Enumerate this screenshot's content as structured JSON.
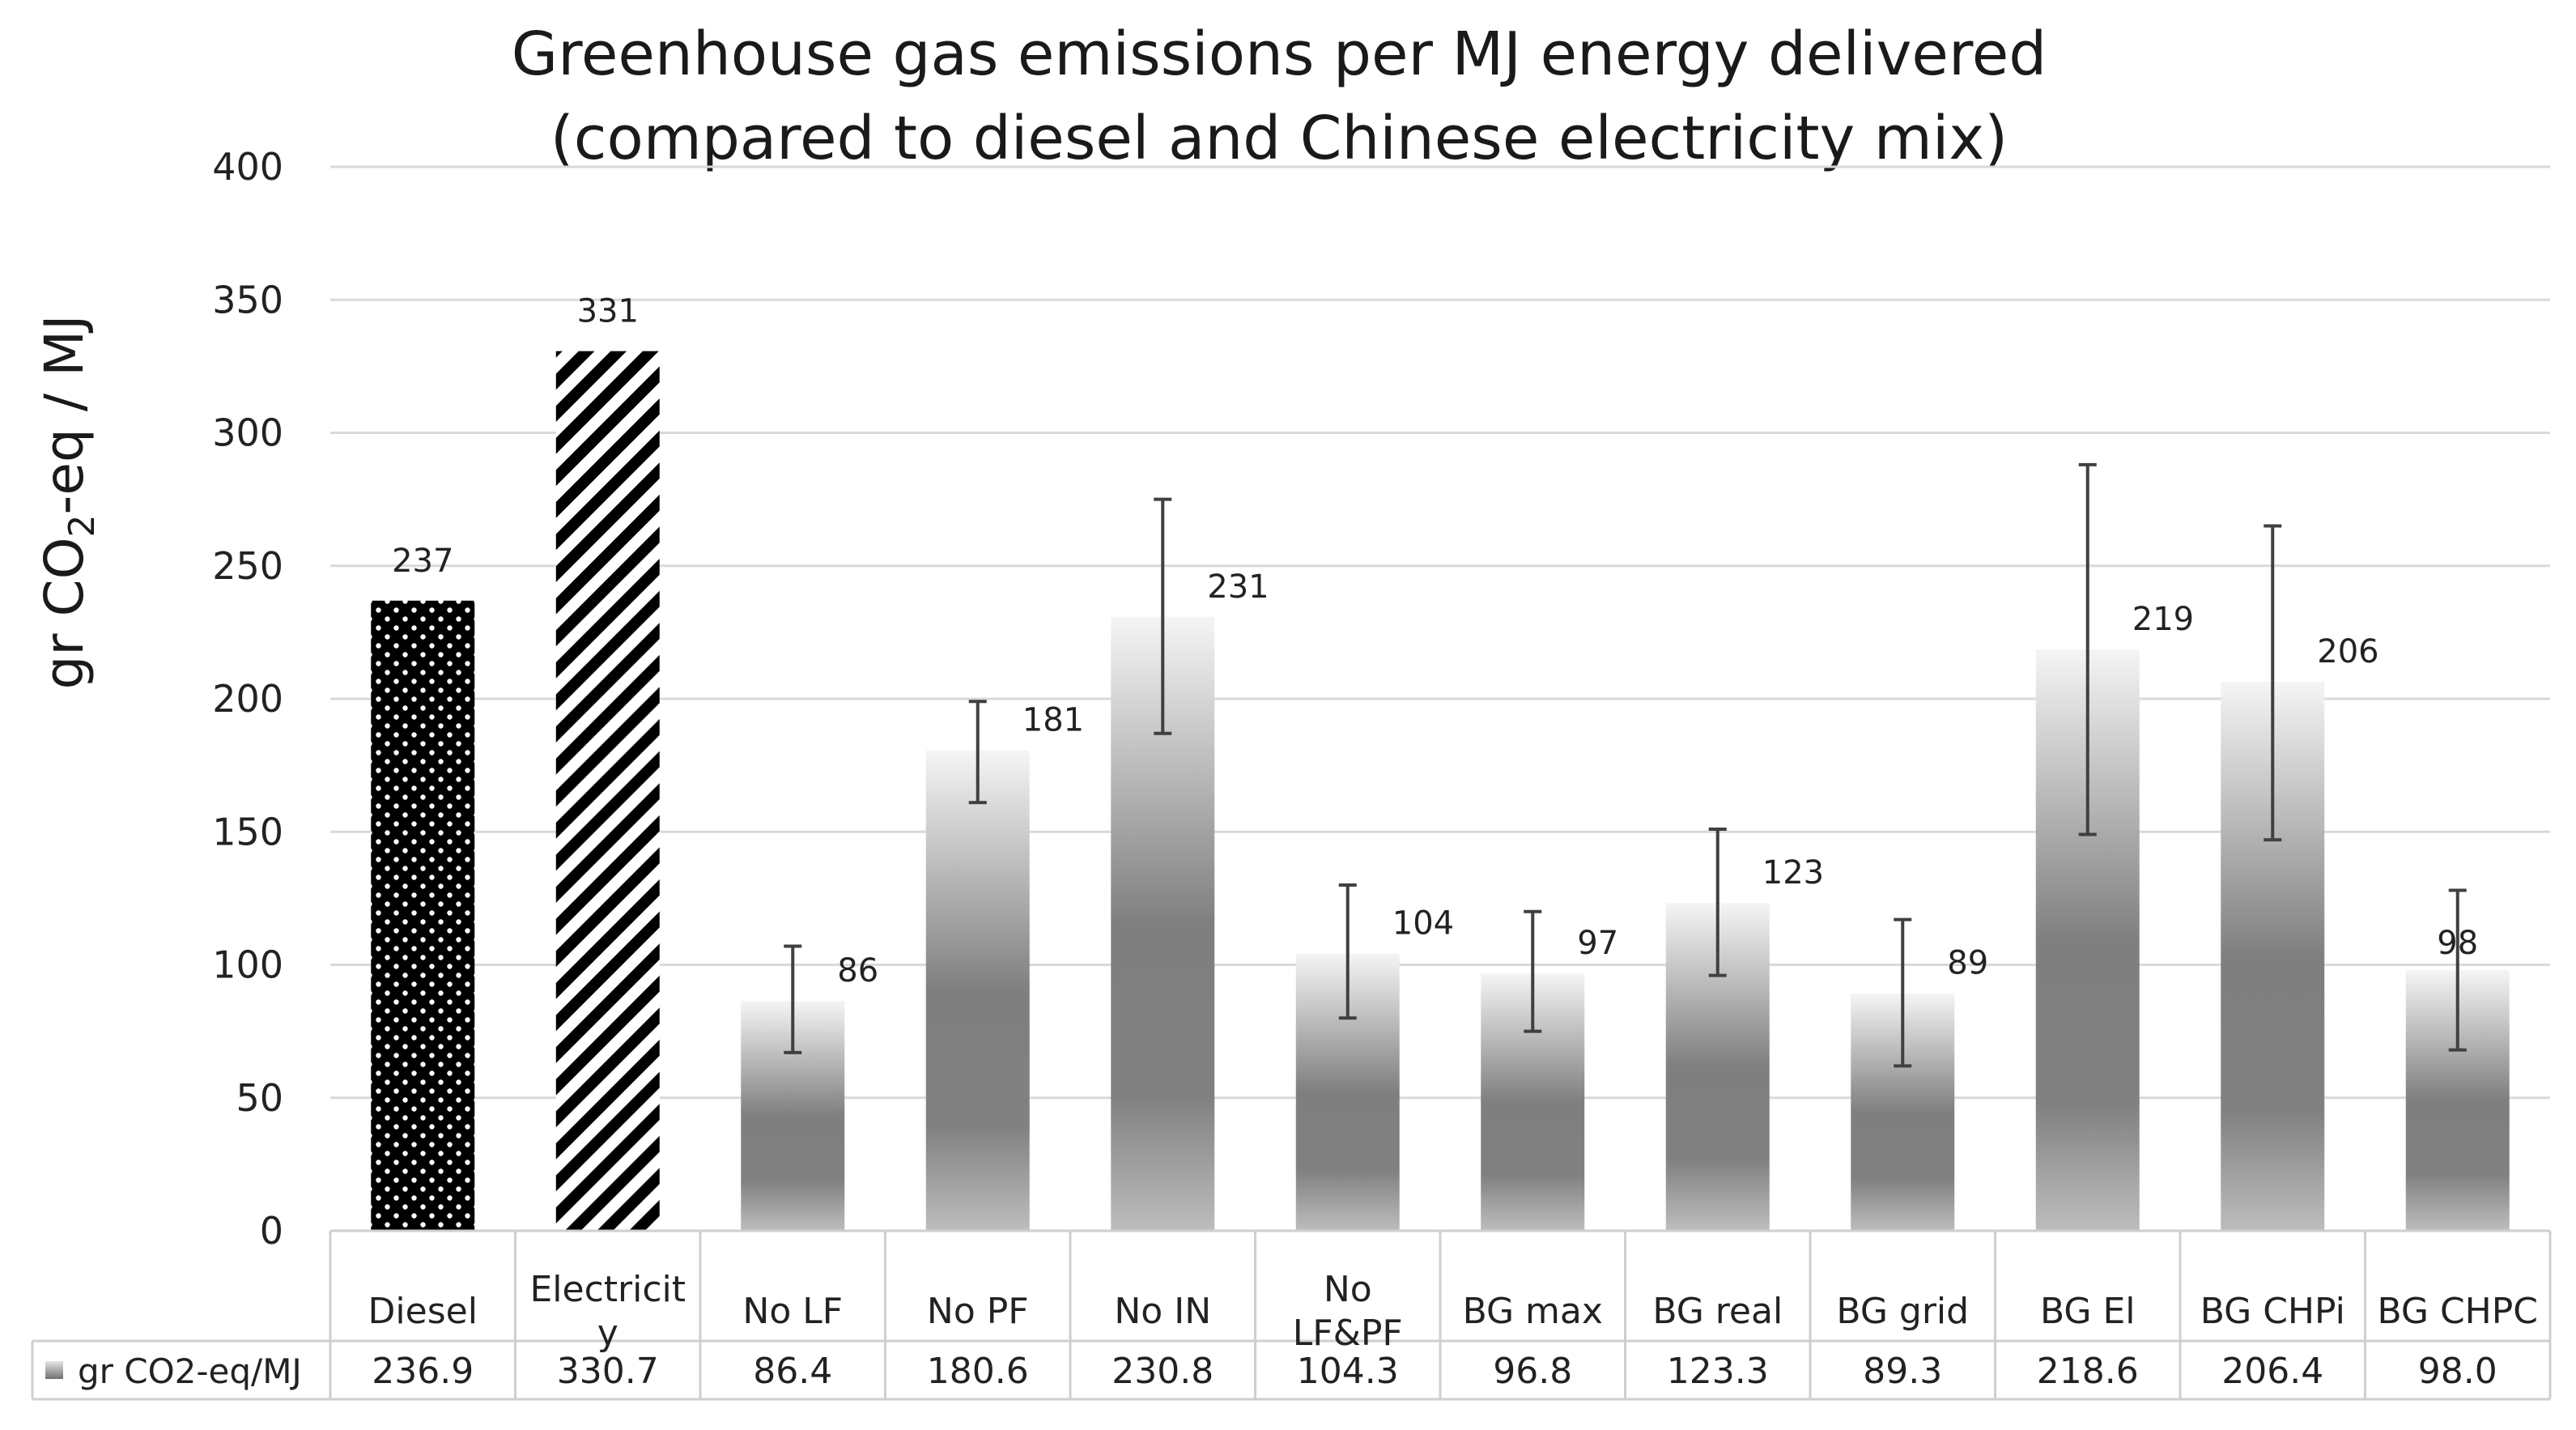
{
  "chart_data": {
    "type": "bar",
    "title": "Greenhouse gas emissions per MJ energy delivered",
    "subtitle": "(compared to diesel and Chinese electricity mix)",
    "ylabel": {
      "base": "gr CO",
      "sub": "2",
      "rest": "-eq  / MJ"
    },
    "ylim": [
      0,
      400
    ],
    "yticks": [
      0,
      50,
      100,
      150,
      200,
      250,
      300,
      350,
      400
    ],
    "categories": [
      "Diesel",
      "Electricity",
      "No LF",
      "No PF",
      "No IN",
      "No LF&PF",
      "BG max",
      "BG real",
      "BG grid",
      "BG El",
      "BG CHPi",
      "BG CHPC"
    ],
    "category_lines": [
      [
        "Diesel"
      ],
      [
        "Electricit",
        "y"
      ],
      [
        "No LF"
      ],
      [
        "No PF"
      ],
      [
        "No IN"
      ],
      [
        "No",
        "LF&PF"
      ],
      [
        "BG max"
      ],
      [
        "BG real"
      ],
      [
        "BG grid"
      ],
      [
        "BG El"
      ],
      [
        "BG CHPi"
      ],
      [
        "BG CHPC"
      ]
    ],
    "series": [
      {
        "name": "gr CO2-eq/MJ",
        "values": [
          236.9,
          330.7,
          86.4,
          180.6,
          230.8,
          104.3,
          96.8,
          123.3,
          89.3,
          218.6,
          206.4,
          98.0
        ],
        "table_values": [
          "236.9",
          "330.7",
          "86.4",
          "180.6",
          "230.8",
          "104.3",
          "96.8",
          "123.3",
          "89.3",
          "218.6",
          "206.4",
          "98.0"
        ],
        "data_labels": [
          "237",
          "331",
          "86",
          "181",
          "231",
          "104",
          "97",
          "123",
          "89",
          "219",
          "206",
          "98"
        ],
        "error_low": [
          null,
          null,
          67,
          161,
          187,
          80,
          75,
          96,
          62,
          149,
          147,
          68
        ],
        "error_high": [
          null,
          null,
          107,
          199,
          275,
          130,
          120,
          151,
          117,
          288,
          265,
          128
        ],
        "patterns": [
          "dots",
          "stripes",
          "gradient",
          "gradient",
          "gradient",
          "gradient",
          "gradient",
          "gradient",
          "gradient",
          "gradient",
          "gradient",
          "gradient"
        ]
      }
    ],
    "legend_position": "table-left",
    "grid": true,
    "colors": {
      "gridline": "#d9d9d9",
      "bar_dark": "#7f7f7f",
      "bar_light": "#f4f4f4",
      "error": "#404040",
      "diesel": "#000000"
    }
  }
}
